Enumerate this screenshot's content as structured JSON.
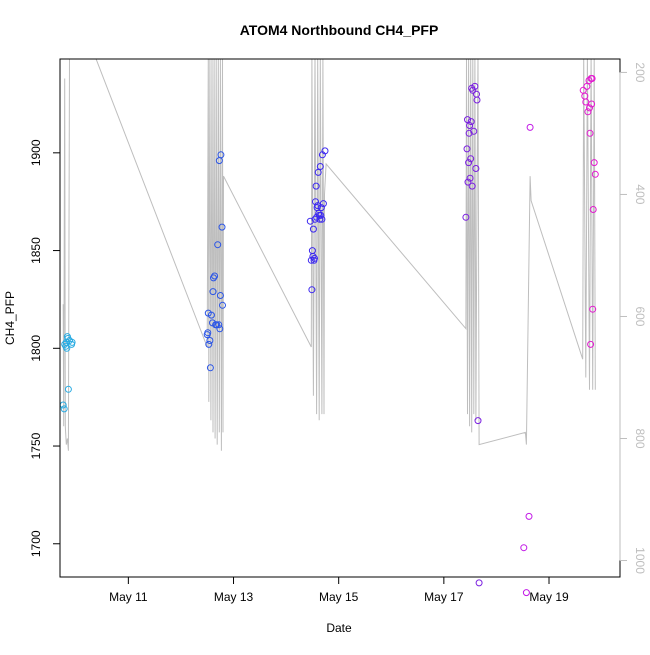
{
  "chart_data": {
    "type": "scatter",
    "title": "ATOM4 Northbound CH4_PFP",
    "xlabel": "Date",
    "ylabel": "CH4_PFP",
    "x_unit": "day of May",
    "xlim": [
      9.7,
      20.35
    ],
    "ylim": [
      1683,
      1948
    ],
    "y_ticks": [
      1700,
      1750,
      1800,
      1850,
      1900
    ],
    "x_ticks": [
      {
        "value": 11,
        "label": "May 11"
      },
      {
        "value": 13,
        "label": "May 13"
      },
      {
        "value": 15,
        "label": "May 15"
      },
      {
        "value": 17,
        "label": "May 17"
      },
      {
        "value": 19,
        "label": "May 19"
      }
    ],
    "y2_ticks": [
      200,
      400,
      600,
      800,
      1000
    ],
    "y2_axis_color": "#bebebe",
    "y2_range_at_ylim": [
      1027,
      178
    ],
    "grid": false,
    "legend": "none",
    "points": [
      {
        "x": 9.76,
        "y": 1771,
        "color": "#29abe2"
      },
      {
        "x": 9.78,
        "y": 1769,
        "color": "#29abe2"
      },
      {
        "x": 9.79,
        "y": 1802,
        "color": "#29abe2"
      },
      {
        "x": 9.81,
        "y": 1801,
        "color": "#29abe2"
      },
      {
        "x": 9.82,
        "y": 1803,
        "color": "#29abe2"
      },
      {
        "x": 9.83,
        "y": 1800,
        "color": "#29abe2"
      },
      {
        "x": 9.84,
        "y": 1806,
        "color": "#29abe2"
      },
      {
        "x": 9.85,
        "y": 1805,
        "color": "#29abe2"
      },
      {
        "x": 9.86,
        "y": 1779,
        "color": "#29abe2"
      },
      {
        "x": 9.88,
        "y": 1804,
        "color": "#29abe2"
      },
      {
        "x": 9.92,
        "y": 1802,
        "color": "#29abe2"
      },
      {
        "x": 9.93,
        "y": 1803,
        "color": "#29abe2"
      },
      {
        "x": 12.5,
        "y": 1807,
        "color": "#2b55e6"
      },
      {
        "x": 12.51,
        "y": 1808,
        "color": "#2b55e6"
      },
      {
        "x": 12.52,
        "y": 1818,
        "color": "#2b55e6"
      },
      {
        "x": 12.53,
        "y": 1802,
        "color": "#2b55e6"
      },
      {
        "x": 12.55,
        "y": 1804,
        "color": "#2b55e6"
      },
      {
        "x": 12.56,
        "y": 1790,
        "color": "#2b55e6"
      },
      {
        "x": 12.58,
        "y": 1817,
        "color": "#2b55e6"
      },
      {
        "x": 12.6,
        "y": 1813,
        "color": "#2b55e6"
      },
      {
        "x": 12.61,
        "y": 1829,
        "color": "#2b55e6"
      },
      {
        "x": 12.62,
        "y": 1836,
        "color": "#2b55e6"
      },
      {
        "x": 12.64,
        "y": 1837,
        "color": "#2b55e6"
      },
      {
        "x": 12.66,
        "y": 1812,
        "color": "#2b55e6"
      },
      {
        "x": 12.68,
        "y": 1812,
        "color": "#2b55e6"
      },
      {
        "x": 12.7,
        "y": 1853,
        "color": "#2b55e6"
      },
      {
        "x": 12.72,
        "y": 1812,
        "color": "#2b55e6"
      },
      {
        "x": 12.73,
        "y": 1896,
        "color": "#2b55e6"
      },
      {
        "x": 12.74,
        "y": 1810,
        "color": "#2b55e6"
      },
      {
        "x": 12.75,
        "y": 1827,
        "color": "#2b55e6"
      },
      {
        "x": 12.76,
        "y": 1899,
        "color": "#2b55e6"
      },
      {
        "x": 12.78,
        "y": 1862,
        "color": "#2b55e6"
      },
      {
        "x": 12.79,
        "y": 1822,
        "color": "#2b55e6"
      },
      {
        "x": 14.46,
        "y": 1865,
        "color": "#3c28f0"
      },
      {
        "x": 14.48,
        "y": 1845,
        "color": "#3c28f0"
      },
      {
        "x": 14.49,
        "y": 1830,
        "color": "#3c28f0"
      },
      {
        "x": 14.5,
        "y": 1850,
        "color": "#3c28f0"
      },
      {
        "x": 14.51,
        "y": 1847,
        "color": "#3c28f0"
      },
      {
        "x": 14.52,
        "y": 1861,
        "color": "#3c28f0"
      },
      {
        "x": 14.53,
        "y": 1845,
        "color": "#3c28f0"
      },
      {
        "x": 14.54,
        "y": 1846,
        "color": "#3c28f0"
      },
      {
        "x": 14.55,
        "y": 1866,
        "color": "#3c28f0"
      },
      {
        "x": 14.56,
        "y": 1875,
        "color": "#3c28f0"
      },
      {
        "x": 14.57,
        "y": 1883,
        "color": "#3c28f0"
      },
      {
        "x": 14.58,
        "y": 1867,
        "color": "#3c28f0"
      },
      {
        "x": 14.59,
        "y": 1872,
        "color": "#3c28f0"
      },
      {
        "x": 14.6,
        "y": 1873,
        "color": "#3c28f0"
      },
      {
        "x": 14.61,
        "y": 1890,
        "color": "#3c28f0"
      },
      {
        "x": 14.62,
        "y": 1869,
        "color": "#3c28f0"
      },
      {
        "x": 14.63,
        "y": 1868,
        "color": "#3c28f0"
      },
      {
        "x": 14.64,
        "y": 1866,
        "color": "#3c28f0"
      },
      {
        "x": 14.65,
        "y": 1893,
        "color": "#3c28f0"
      },
      {
        "x": 14.66,
        "y": 1868,
        "color": "#3c28f0"
      },
      {
        "x": 14.67,
        "y": 1872,
        "color": "#3c28f0"
      },
      {
        "x": 14.68,
        "y": 1866,
        "color": "#3c28f0"
      },
      {
        "x": 14.69,
        "y": 1899,
        "color": "#3c28f0"
      },
      {
        "x": 14.71,
        "y": 1874,
        "color": "#3c28f0"
      },
      {
        "x": 14.74,
        "y": 1901,
        "color": "#3c28f0"
      },
      {
        "x": 17.42,
        "y": 1867,
        "color": "#7a1fe0"
      },
      {
        "x": 17.44,
        "y": 1902,
        "color": "#7a1fe0"
      },
      {
        "x": 17.45,
        "y": 1917,
        "color": "#7a1fe0"
      },
      {
        "x": 17.46,
        "y": 1885,
        "color": "#7a1fe0"
      },
      {
        "x": 17.47,
        "y": 1895,
        "color": "#7a1fe0"
      },
      {
        "x": 17.48,
        "y": 1910,
        "color": "#7a1fe0"
      },
      {
        "x": 17.49,
        "y": 1914,
        "color": "#7a1fe0"
      },
      {
        "x": 17.5,
        "y": 1887,
        "color": "#7a1fe0"
      },
      {
        "x": 17.51,
        "y": 1897,
        "color": "#7a1fe0"
      },
      {
        "x": 17.52,
        "y": 1916,
        "color": "#7a1fe0"
      },
      {
        "x": 17.53,
        "y": 1933,
        "color": "#7a1fe0"
      },
      {
        "x": 17.54,
        "y": 1883,
        "color": "#7a1fe0"
      },
      {
        "x": 17.55,
        "y": 1932,
        "color": "#7a1fe0"
      },
      {
        "x": 17.57,
        "y": 1911,
        "color": "#7a1fe0"
      },
      {
        "x": 17.59,
        "y": 1934,
        "color": "#7a1fe0"
      },
      {
        "x": 17.61,
        "y": 1892,
        "color": "#7a1fe0"
      },
      {
        "x": 17.62,
        "y": 1930,
        "color": "#7a1fe0"
      },
      {
        "x": 17.63,
        "y": 1927,
        "color": "#7a1fe0"
      },
      {
        "x": 17.65,
        "y": 1763,
        "color": "#7a1fe0"
      },
      {
        "x": 17.67,
        "y": 1680,
        "color": "#7a1fe0"
      },
      {
        "x": 18.52,
        "y": 1698,
        "color": "#c21ae6"
      },
      {
        "x": 18.57,
        "y": 1675,
        "color": "#c21ae6"
      },
      {
        "x": 18.62,
        "y": 1714,
        "color": "#c21ae6"
      },
      {
        "x": 18.64,
        "y": 1913,
        "color": "#c21ae6"
      },
      {
        "x": 19.65,
        "y": 1932,
        "color": "#e31ad0"
      },
      {
        "x": 19.68,
        "y": 1929,
        "color": "#e31ad0"
      },
      {
        "x": 19.7,
        "y": 1926,
        "color": "#e31ad0"
      },
      {
        "x": 19.72,
        "y": 1934,
        "color": "#e31ad0"
      },
      {
        "x": 19.74,
        "y": 1921,
        "color": "#e31ad0"
      },
      {
        "x": 19.76,
        "y": 1937,
        "color": "#e31ad0"
      },
      {
        "x": 19.77,
        "y": 1923,
        "color": "#e31ad0"
      },
      {
        "x": 19.78,
        "y": 1910,
        "color": "#e31ad0"
      },
      {
        "x": 19.79,
        "y": 1802,
        "color": "#e31ad0"
      },
      {
        "x": 19.8,
        "y": 1938,
        "color": "#e31ad0"
      },
      {
        "x": 19.81,
        "y": 1925,
        "color": "#e31ad0"
      },
      {
        "x": 19.82,
        "y": 1938,
        "color": "#e31ad0"
      },
      {
        "x": 19.83,
        "y": 1820,
        "color": "#e31ad0"
      },
      {
        "x": 19.84,
        "y": 1871,
        "color": "#e31ad0"
      },
      {
        "x": 19.86,
        "y": 1895,
        "color": "#e31ad0"
      },
      {
        "x": 19.88,
        "y": 1889,
        "color": "#e31ad0"
      }
    ],
    "altitude_line": {
      "color": "#bebebe",
      "points": [
        [
          9.76,
          580
        ],
        [
          9.77,
          780
        ],
        [
          9.79,
          210
        ],
        [
          9.8,
          780
        ],
        [
          9.82,
          810
        ],
        [
          9.84,
          800
        ],
        [
          9.86,
          820
        ],
        [
          9.88,
          170
        ],
        [
          10.35,
          170
        ],
        [
          12.5,
          650
        ],
        [
          12.52,
          170
        ],
        [
          12.53,
          740
        ],
        [
          12.55,
          170
        ],
        [
          12.57,
          770
        ],
        [
          12.59,
          170
        ],
        [
          12.61,
          790
        ],
        [
          12.63,
          170
        ],
        [
          12.65,
          800
        ],
        [
          12.67,
          170
        ],
        [
          12.69,
          810
        ],
        [
          12.71,
          170
        ],
        [
          12.73,
          790
        ],
        [
          12.75,
          170
        ],
        [
          12.77,
          820
        ],
        [
          12.79,
          170
        ],
        [
          12.8,
          790
        ],
        [
          12.81,
          370
        ],
        [
          14.48,
          650
        ],
        [
          14.49,
          170
        ],
        [
          14.52,
          730
        ],
        [
          14.55,
          170
        ],
        [
          14.58,
          760
        ],
        [
          14.6,
          170
        ],
        [
          14.63,
          770
        ],
        [
          14.65,
          170
        ],
        [
          14.68,
          760
        ],
        [
          14.7,
          170
        ],
        [
          14.72,
          760
        ],
        [
          14.73,
          400
        ],
        [
          14.76,
          350
        ],
        [
          17.42,
          620
        ],
        [
          17.43,
          170
        ],
        [
          17.45,
          760
        ],
        [
          17.47,
          170
        ],
        [
          17.49,
          780
        ],
        [
          17.51,
          170
        ],
        [
          17.53,
          790
        ],
        [
          17.55,
          170
        ],
        [
          17.57,
          760
        ],
        [
          17.59,
          170
        ],
        [
          17.61,
          770
        ],
        [
          17.63,
          400
        ],
        [
          17.65,
          170
        ],
        [
          17.67,
          810
        ],
        [
          18.55,
          790
        ],
        [
          18.57,
          810
        ],
        [
          18.64,
          370
        ],
        [
          18.66,
          410
        ],
        [
          19.64,
          670
        ],
        [
          19.66,
          170
        ],
        [
          19.7,
          700
        ],
        [
          19.73,
          170
        ],
        [
          19.77,
          720
        ],
        [
          19.8,
          170
        ],
        [
          19.83,
          720
        ],
        [
          19.86,
          170
        ],
        [
          19.88,
          720
        ]
      ]
    }
  }
}
